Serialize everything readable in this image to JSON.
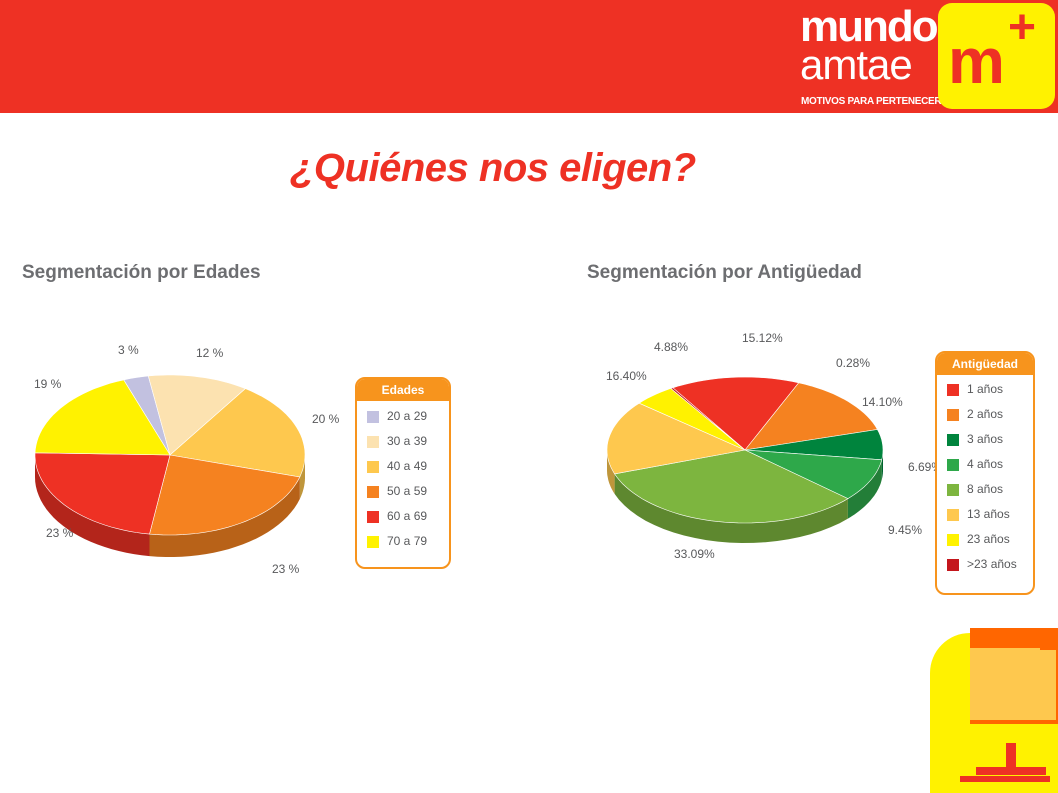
{
  "header": {
    "brand_line1": "mundo",
    "brand_line2": "amtae",
    "tagline": "MOTIVOS PARA PERTENECER",
    "logo_letter": "m",
    "logo_plus": "+"
  },
  "page_title": "¿Quiénes nos eligen?",
  "chart_data": [
    {
      "type": "pie",
      "title": "Segmentación por Edades",
      "legend_title": "Edades",
      "legend_position": "right",
      "categories": [
        "20 a 29",
        "30 a 39",
        "40 a 49",
        "50 a 59",
        "60 a 69",
        "70 a 79"
      ],
      "values": [
        3,
        12,
        20,
        23,
        23,
        19
      ],
      "labels": [
        "3 %",
        "12 %",
        "20 %",
        "23 %",
        "23 %",
        "19 %"
      ],
      "colors": [
        "#c2c1e0",
        "#fce2b0",
        "#fec84e",
        "#f58220",
        "#ee3124",
        "#fff200"
      ]
    },
    {
      "type": "pie",
      "title": "Segmentación por Antigüedad",
      "legend_title": "Antigüedad",
      "legend_position": "right",
      "categories": [
        "1 años",
        "2 años",
        "3 años",
        "4 años",
        "8 años",
        "13 años",
        "23 años",
        ">23 años"
      ],
      "values": [
        15.12,
        14.1,
        6.69,
        9.45,
        33.09,
        16.4,
        4.88,
        0.28
      ],
      "labels": [
        "15.12%",
        "14.10%",
        "6.69%",
        "9.45%",
        "33.09%",
        "16.40%",
        "4.88%",
        "0.28%"
      ],
      "colors": [
        "#ee3124",
        "#f58220",
        "#00843d",
        "#2ea84a",
        "#7db53f",
        "#fec84e",
        "#fff200",
        "#c4161c"
      ]
    }
  ]
}
